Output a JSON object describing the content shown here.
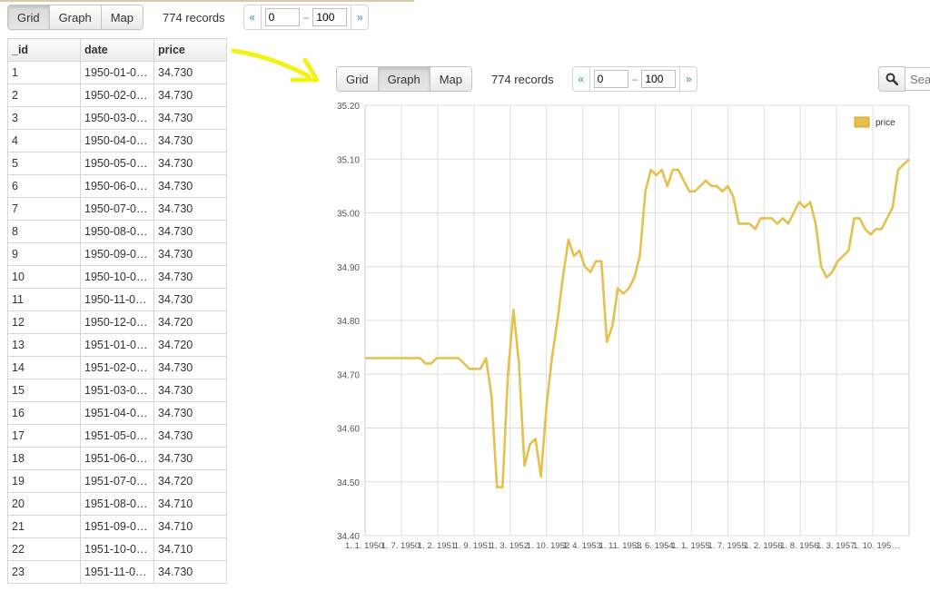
{
  "toolbar": {
    "views": [
      "Grid",
      "Graph",
      "Map"
    ],
    "records": "774 records",
    "from": "0",
    "to": "100",
    "prev": "«",
    "next": "»",
    "dash": "–"
  },
  "search": {
    "placeholder": "Search"
  },
  "grid": {
    "columns": [
      "_id",
      "date",
      "price"
    ],
    "rows": [
      [
        "1",
        "1950-01-0…",
        "34.730"
      ],
      [
        "2",
        "1950-02-0…",
        "34.730"
      ],
      [
        "3",
        "1950-03-0…",
        "34.730"
      ],
      [
        "4",
        "1950-04-0…",
        "34.730"
      ],
      [
        "5",
        "1950-05-0…",
        "34.730"
      ],
      [
        "6",
        "1950-06-0…",
        "34.730"
      ],
      [
        "7",
        "1950-07-0…",
        "34.730"
      ],
      [
        "8",
        "1950-08-0…",
        "34.730"
      ],
      [
        "9",
        "1950-09-0…",
        "34.730"
      ],
      [
        "10",
        "1950-10-0…",
        "34.730"
      ],
      [
        "11",
        "1950-11-0…",
        "34.730"
      ],
      [
        "12",
        "1950-12-0…",
        "34.720"
      ],
      [
        "13",
        "1951-01-0…",
        "34.720"
      ],
      [
        "14",
        "1951-02-0…",
        "34.730"
      ],
      [
        "15",
        "1951-03-0…",
        "34.730"
      ],
      [
        "16",
        "1951-04-0…",
        "34.730"
      ],
      [
        "17",
        "1951-05-0…",
        "34.730"
      ],
      [
        "18",
        "1951-06-0…",
        "34.730"
      ],
      [
        "19",
        "1951-07-0…",
        "34.720"
      ],
      [
        "20",
        "1951-08-0…",
        "34.710"
      ],
      [
        "21",
        "1951-09-0…",
        "34.710"
      ],
      [
        "22",
        "1951-10-0…",
        "34.710"
      ],
      [
        "23",
        "1951-11-0…",
        "34.730"
      ]
    ]
  },
  "colors": {
    "line": "#e6c04f",
    "arrow": "#f2f21a",
    "grid": "#dddddd",
    "link": "#3a87ad"
  },
  "chart_data": {
    "type": "line",
    "series": [
      {
        "name": "price",
        "values": [
          34.73,
          34.73,
          34.73,
          34.73,
          34.73,
          34.73,
          34.73,
          34.73,
          34.73,
          34.73,
          34.73,
          34.72,
          34.72,
          34.73,
          34.73,
          34.73,
          34.73,
          34.73,
          34.72,
          34.71,
          34.71,
          34.71,
          34.73,
          34.66,
          34.49,
          34.49,
          34.7,
          34.82,
          34.72,
          34.53,
          34.57,
          34.58,
          34.51,
          34.64,
          34.73,
          34.8,
          34.88,
          34.95,
          34.92,
          34.93,
          34.9,
          34.89,
          34.91,
          34.91,
          34.76,
          34.79,
          34.86,
          34.85,
          34.86,
          34.88,
          34.92,
          35.04,
          35.08,
          35.07,
          35.08,
          35.05,
          35.08,
          35.08,
          35.06,
          35.04,
          35.04,
          35.05,
          35.06,
          35.05,
          35.05,
          35.04,
          35.05,
          35.03,
          34.98,
          34.98,
          34.98,
          34.97,
          34.99,
          34.99,
          34.99,
          34.98,
          34.99,
          34.98,
          35.0,
          35.02,
          35.01,
          35.02,
          34.98,
          34.9,
          34.88,
          34.89,
          34.91,
          34.92,
          34.93,
          34.99,
          34.99,
          34.97,
          34.96,
          34.97,
          34.97,
          34.99,
          35.01,
          35.08,
          35.09,
          35.1
        ]
      }
    ],
    "xtick_labels": [
      "1. 1. 1950",
      "1. 7. 1950",
      "1. 2. 1951",
      "1. 9. 1951",
      "1. 3. 1952",
      "1. 10. 1952",
      "1. 4. 1953",
      "1. 11. 1953",
      "1. 6. 1954",
      "1. 1. 1955",
      "1. 7. 1955",
      "1. 2. 1956",
      "1. 8. 1956",
      "1. 3. 1957",
      "1. 10. 195…"
    ],
    "yticks": [
      "34.40",
      "34.50",
      "34.60",
      "34.70",
      "34.80",
      "34.90",
      "35.00",
      "35.10",
      "35.20"
    ],
    "ylim": [
      34.4,
      35.2
    ],
    "legend": "top-right",
    "grid": true
  }
}
